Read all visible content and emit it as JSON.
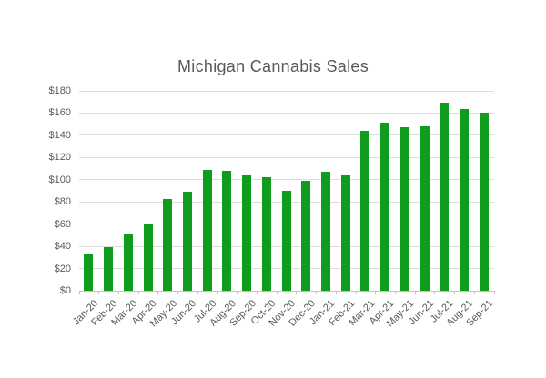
{
  "title": "Michigan Cannabis Sales",
  "chart_data": {
    "type": "bar",
    "title": "Michigan Cannabis Sales",
    "xlabel": "",
    "ylabel": "",
    "categories": [
      "Jan-20",
      "Feb-20",
      "Mar-20",
      "Apr-20",
      "May-20",
      "Jun-20",
      "Jul-20",
      "Aug-20",
      "Sep-20",
      "Oct-20",
      "Nov-20",
      "Dec-20",
      "Jan-21",
      "Feb-21",
      "Mar-21",
      "Apr-21",
      "May-21",
      "Jun-21",
      "Jul-21",
      "Aug-21",
      "Sep-21"
    ],
    "values": [
      33,
      39,
      51,
      60,
      83,
      89,
      109,
      108,
      104,
      102,
      90,
      99,
      107,
      104,
      144,
      151,
      147,
      148,
      169,
      164,
      160
    ],
    "ylim": [
      0,
      180
    ],
    "y_ticks": [
      0,
      20,
      40,
      60,
      80,
      100,
      120,
      140,
      160,
      180
    ],
    "y_tick_labels": [
      "$0",
      "$20",
      "$40",
      "$60",
      "$80",
      "$100",
      "$120",
      "$140",
      "$160",
      "$180"
    ],
    "grid": true,
    "legend": false,
    "bar_color": "#109C1C",
    "gridline_color": "#DCDCDC",
    "axis_line_color": "#C3C3C3",
    "text_color": "#595959",
    "title_color": "#595959"
  }
}
